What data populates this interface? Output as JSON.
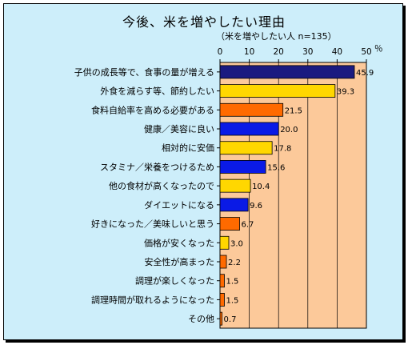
{
  "chart_data": {
    "type": "bar",
    "orientation": "horizontal",
    "title": "今後、米を増やしたい理由",
    "subtitle": "（米を増やしたい人 n=135）",
    "unit_label": "％",
    "xlim": [
      0,
      50
    ],
    "ticks": [
      0,
      10,
      20,
      30,
      40,
      50
    ],
    "tick_labels": [
      "0",
      "10",
      "20",
      "30",
      "40",
      "50"
    ],
    "grid": true,
    "categories": [
      "子供の成長等で、食事の量が増える",
      "外食を減らす等、節約したい",
      "食料自給率を高める必要がある",
      "健康／美容に良い",
      "相対的に安価",
      "スタミナ／栄養をつけるため",
      "他の食材が高くなったので",
      "ダイエットになる",
      "好きになった／美味しいと思う",
      "価格が安くなった",
      "安全性が高まった",
      "調理が楽しくなった",
      "調理時間が取れるようになった",
      "その他"
    ],
    "values": [
      45.9,
      39.3,
      21.5,
      20.0,
      17.8,
      15.6,
      10.4,
      9.6,
      6.7,
      3.0,
      2.2,
      1.5,
      1.5,
      0.7
    ],
    "value_labels": [
      "45.9",
      "39.3",
      "21.5",
      "20.0",
      "17.8",
      "15.6",
      "10.4",
      "9.6",
      "6.7",
      "3.0",
      "2.2",
      "1.5",
      "1.5",
      "0.7"
    ],
    "bar_colors": [
      "#1a1a80",
      "#ffd700",
      "#ff6a00",
      "#0a1ae6",
      "#ffd700",
      "#0a1ae6",
      "#ffd700",
      "#0a1ae6",
      "#ff6a00",
      "#ffd700",
      "#ff6a00",
      "#ff6a00",
      "#ff6a00",
      "#ff6a00"
    ],
    "plot_background": "#fcc99a",
    "background": "#cdeefa"
  }
}
